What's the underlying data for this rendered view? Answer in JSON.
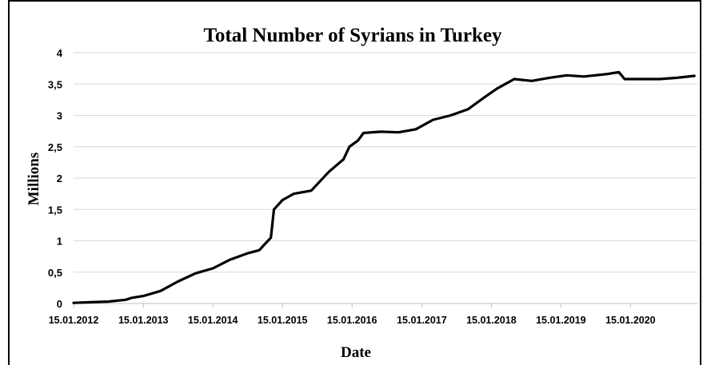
{
  "chart_data": {
    "type": "line",
    "title": "Total Number of Syrians in Turkey",
    "xlabel": "Date",
    "ylabel": "Millions",
    "ylim": [
      0,
      4
    ],
    "yticks": [
      "0",
      "0,5",
      "1",
      "1,5",
      "2",
      "2,5",
      "3",
      "3,5",
      "4"
    ],
    "xticks": [
      "15.01.2012",
      "15.01.2013",
      "15.01.2014",
      "15.01.2015",
      "15.01.2016",
      "15.01.2017",
      "15.01.2018",
      "15.01.2019",
      "15.01.2020"
    ],
    "grid": true,
    "series": [
      {
        "points": [
          [
            "2012-01-15",
            0.01
          ],
          [
            "2012-04-15",
            0.02
          ],
          [
            "2012-07-15",
            0.03
          ],
          [
            "2012-10-15",
            0.06
          ],
          [
            "2012-11-15",
            0.09
          ],
          [
            "2013-01-15",
            0.12
          ],
          [
            "2013-04-15",
            0.2
          ],
          [
            "2013-07-15",
            0.35
          ],
          [
            "2013-10-15",
            0.48
          ],
          [
            "2014-01-15",
            0.56
          ],
          [
            "2014-04-15",
            0.7
          ],
          [
            "2014-07-15",
            0.8
          ],
          [
            "2014-09-15",
            0.85
          ],
          [
            "2014-10-15",
            0.95
          ],
          [
            "2014-11-15",
            1.05
          ],
          [
            "2014-12-01",
            1.5
          ],
          [
            "2015-01-15",
            1.65
          ],
          [
            "2015-03-15",
            1.75
          ],
          [
            "2015-06-15",
            1.8
          ],
          [
            "2015-09-15",
            2.1
          ],
          [
            "2015-12-01",
            2.3
          ],
          [
            "2016-01-01",
            2.5
          ],
          [
            "2016-02-15",
            2.6
          ],
          [
            "2016-03-15",
            2.72
          ],
          [
            "2016-06-15",
            2.74
          ],
          [
            "2016-09-15",
            2.73
          ],
          [
            "2016-12-15",
            2.78
          ],
          [
            "2017-03-15",
            2.93
          ],
          [
            "2017-06-15",
            3.0
          ],
          [
            "2017-09-15",
            3.1
          ],
          [
            "2017-12-15",
            3.3
          ],
          [
            "2018-02-15",
            3.43
          ],
          [
            "2018-05-15",
            3.58
          ],
          [
            "2018-08-15",
            3.55
          ],
          [
            "2018-11-15",
            3.6
          ],
          [
            "2019-02-15",
            3.64
          ],
          [
            "2019-05-15",
            3.62
          ],
          [
            "2019-09-15",
            3.66
          ],
          [
            "2019-11-15",
            3.69
          ],
          [
            "2019-12-15",
            3.58
          ],
          [
            "2020-03-15",
            3.58
          ],
          [
            "2020-06-15",
            3.58
          ],
          [
            "2020-09-15",
            3.6
          ],
          [
            "2020-12-15",
            3.63
          ]
        ]
      }
    ]
  }
}
